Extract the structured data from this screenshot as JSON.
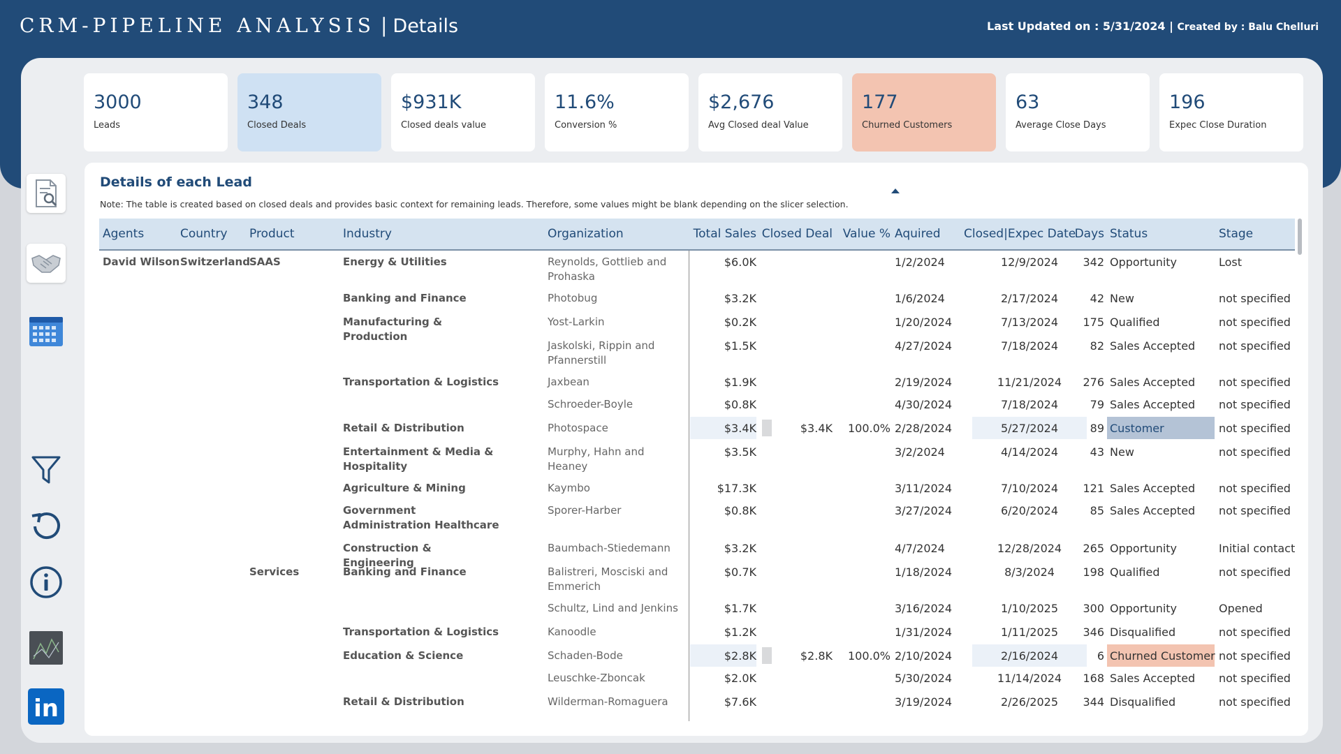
{
  "header": {
    "title": "CRM-PIPELINE ANALYSIS",
    "separator": "|",
    "subtitle": "Details",
    "last_updated_label": "Last Updated on : 5/31/2024 |",
    "created_by": "Created by : Balu Chelluri"
  },
  "nav": {
    "items": [
      {
        "name": "report-icon"
      },
      {
        "name": "handshake-icon"
      },
      {
        "name": "calendar-icon"
      },
      {
        "name": "filter-icon"
      },
      {
        "name": "reset-icon"
      },
      {
        "name": "info-icon"
      },
      {
        "name": "chart-icon"
      },
      {
        "name": "linkedin-icon",
        "text": "in"
      }
    ]
  },
  "kpis": [
    {
      "value": "3000",
      "label": "Leads"
    },
    {
      "value": "348",
      "label": "Closed Deals"
    },
    {
      "value": "$931K",
      "label": "Closed deals value"
    },
    {
      "value": "11.6%",
      "label": "Conversion %"
    },
    {
      "value": "$2,676",
      "label": "Avg Closed deal Value"
    },
    {
      "value": "177",
      "label": "Churned Customers"
    },
    {
      "value": "63",
      "label": "Average Close Days"
    },
    {
      "value": "196",
      "label": "Expec Close Duration"
    }
  ],
  "colors": {
    "brand": "#214b78",
    "kpi_highlight": "#cfe1f3",
    "churn": "#f3c4b1",
    "customer_status": "#b4c3d6"
  },
  "table": {
    "title": "Details of each Lead",
    "note": "Note: The table is created based on closed deals and provides basic context for remaining leads. Therefore, some values might be blank depending on the slicer selection.",
    "columns": [
      "Agents",
      "Country",
      "Product",
      "Industry",
      "Organization",
      "Total Sales",
      "Closed Deal",
      "Value %",
      "Aquired",
      "Closed|Expec Date",
      "Days",
      "Status",
      "Stage"
    ],
    "rows": [
      {
        "agent": "David Wilson",
        "country": "Switzerland",
        "product": "SAAS",
        "industry": "Energy & Utilities",
        "org": "Reynolds, Gottlieb and Prohaska",
        "total": "$6.0K",
        "closed": "",
        "pct": "",
        "aquired": "1/2/2024",
        "date": "12/9/2024",
        "days": "342",
        "status": "Opportunity",
        "stage": "Lost"
      },
      {
        "agent": "",
        "country": "",
        "product": "",
        "industry": "Banking and Finance",
        "org": "Photobug",
        "total": "$3.2K",
        "closed": "",
        "pct": "",
        "aquired": "1/6/2024",
        "date": "2/17/2024",
        "days": "42",
        "status": "New",
        "stage": "not specified"
      },
      {
        "agent": "",
        "country": "",
        "product": "",
        "industry": "Manufacturing & Production",
        "org": "Yost-Larkin",
        "total": "$0.2K",
        "closed": "",
        "pct": "",
        "aquired": "1/20/2024",
        "date": "7/13/2024",
        "days": "175",
        "status": "Qualified",
        "stage": "not specified"
      },
      {
        "agent": "",
        "country": "",
        "product": "",
        "industry": "",
        "org": "Jaskolski, Rippin and Pfannerstill",
        "total": "$1.5K",
        "closed": "",
        "pct": "",
        "aquired": "4/27/2024",
        "date": "7/18/2024",
        "days": "82",
        "status": "Sales Accepted",
        "stage": "not specified"
      },
      {
        "agent": "",
        "country": "",
        "product": "",
        "industry": "Transportation & Logistics",
        "org": "Jaxbean",
        "total": "$1.9K",
        "closed": "",
        "pct": "",
        "aquired": "2/19/2024",
        "date": "11/21/2024",
        "days": "276",
        "status": "Sales Accepted",
        "stage": "not specified"
      },
      {
        "agent": "",
        "country": "",
        "product": "",
        "industry": "",
        "org": "Schroeder-Boyle",
        "total": "$0.8K",
        "closed": "",
        "pct": "",
        "aquired": "4/30/2024",
        "date": "7/18/2024",
        "days": "79",
        "status": "Sales Accepted",
        "stage": "not specified"
      },
      {
        "agent": "",
        "country": "",
        "product": "",
        "industry": "Retail & Distribution",
        "org": "Photospace",
        "total": "$3.4K",
        "closed": "$3.4K",
        "pct": "100.0%",
        "aquired": "2/28/2024",
        "date": "5/27/2024",
        "days": "89",
        "status": "Customer",
        "stage": "not specified"
      },
      {
        "agent": "",
        "country": "",
        "product": "",
        "industry": "Entertainment & Media & Hospitality",
        "org": "Murphy, Hahn and Heaney",
        "total": "$3.5K",
        "closed": "",
        "pct": "",
        "aquired": "3/2/2024",
        "date": "4/14/2024",
        "days": "43",
        "status": "New",
        "stage": "not specified"
      },
      {
        "agent": "",
        "country": "",
        "product": "",
        "industry": "Agriculture & Mining",
        "org": "Kaymbo",
        "total": "$17.3K",
        "closed": "",
        "pct": "",
        "aquired": "3/11/2024",
        "date": "7/10/2024",
        "days": "121",
        "status": "Sales Accepted",
        "stage": "not specified"
      },
      {
        "agent": "",
        "country": "",
        "product": "",
        "industry": "Government Administration Healthcare",
        "org": "Sporer-Harber",
        "total": "$0.8K",
        "closed": "",
        "pct": "",
        "aquired": "3/27/2024",
        "date": "6/20/2024",
        "days": "85",
        "status": "Sales Accepted",
        "stage": "not specified"
      },
      {
        "agent": "",
        "country": "",
        "product": "",
        "industry": "Construction & Engineering",
        "org": "Baumbach-Stiedemann",
        "total": "$3.2K",
        "closed": "",
        "pct": "",
        "aquired": "4/7/2024",
        "date": "12/28/2024",
        "days": "265",
        "status": "Opportunity",
        "stage": "Initial contact"
      },
      {
        "agent": "",
        "country": "",
        "product": "Services",
        "industry": "Banking and Finance",
        "org": "Balistreri, Mosciski and Emmerich",
        "total": "$0.7K",
        "closed": "",
        "pct": "",
        "aquired": "1/18/2024",
        "date": "8/3/2024",
        "days": "198",
        "status": "Qualified",
        "stage": "not specified"
      },
      {
        "agent": "",
        "country": "",
        "product": "",
        "industry": "",
        "org": "Schultz, Lind and Jenkins",
        "total": "$1.7K",
        "closed": "",
        "pct": "",
        "aquired": "3/16/2024",
        "date": "1/10/2025",
        "days": "300",
        "status": "Opportunity",
        "stage": "Opened"
      },
      {
        "agent": "",
        "country": "",
        "product": "",
        "industry": "Transportation & Logistics",
        "org": "Kanoodle",
        "total": "$1.2K",
        "closed": "",
        "pct": "",
        "aquired": "1/31/2024",
        "date": "1/11/2025",
        "days": "346",
        "status": "Disqualified",
        "stage": "not specified"
      },
      {
        "agent": "",
        "country": "",
        "product": "",
        "industry": "Education & Science",
        "org": "Schaden-Bode",
        "total": "$2.8K",
        "closed": "$2.8K",
        "pct": "100.0%",
        "aquired": "2/10/2024",
        "date": "2/16/2024",
        "days": "6",
        "status": "Churned Customer",
        "stage": "not specified"
      },
      {
        "agent": "",
        "country": "",
        "product": "",
        "industry": "",
        "org": "Leuschke-Zboncak",
        "total": "$2.0K",
        "closed": "",
        "pct": "",
        "aquired": "5/30/2024",
        "date": "11/14/2024",
        "days": "168",
        "status": "Sales Accepted",
        "stage": "not specified"
      },
      {
        "agent": "",
        "country": "",
        "product": "",
        "industry": "Retail & Distribution",
        "org": "Wilderman-Romaguera",
        "total": "$7.6K",
        "closed": "",
        "pct": "",
        "aquired": "3/19/2024",
        "date": "2/26/2025",
        "days": "344",
        "status": "Disqualified",
        "stage": "not specified"
      }
    ]
  }
}
